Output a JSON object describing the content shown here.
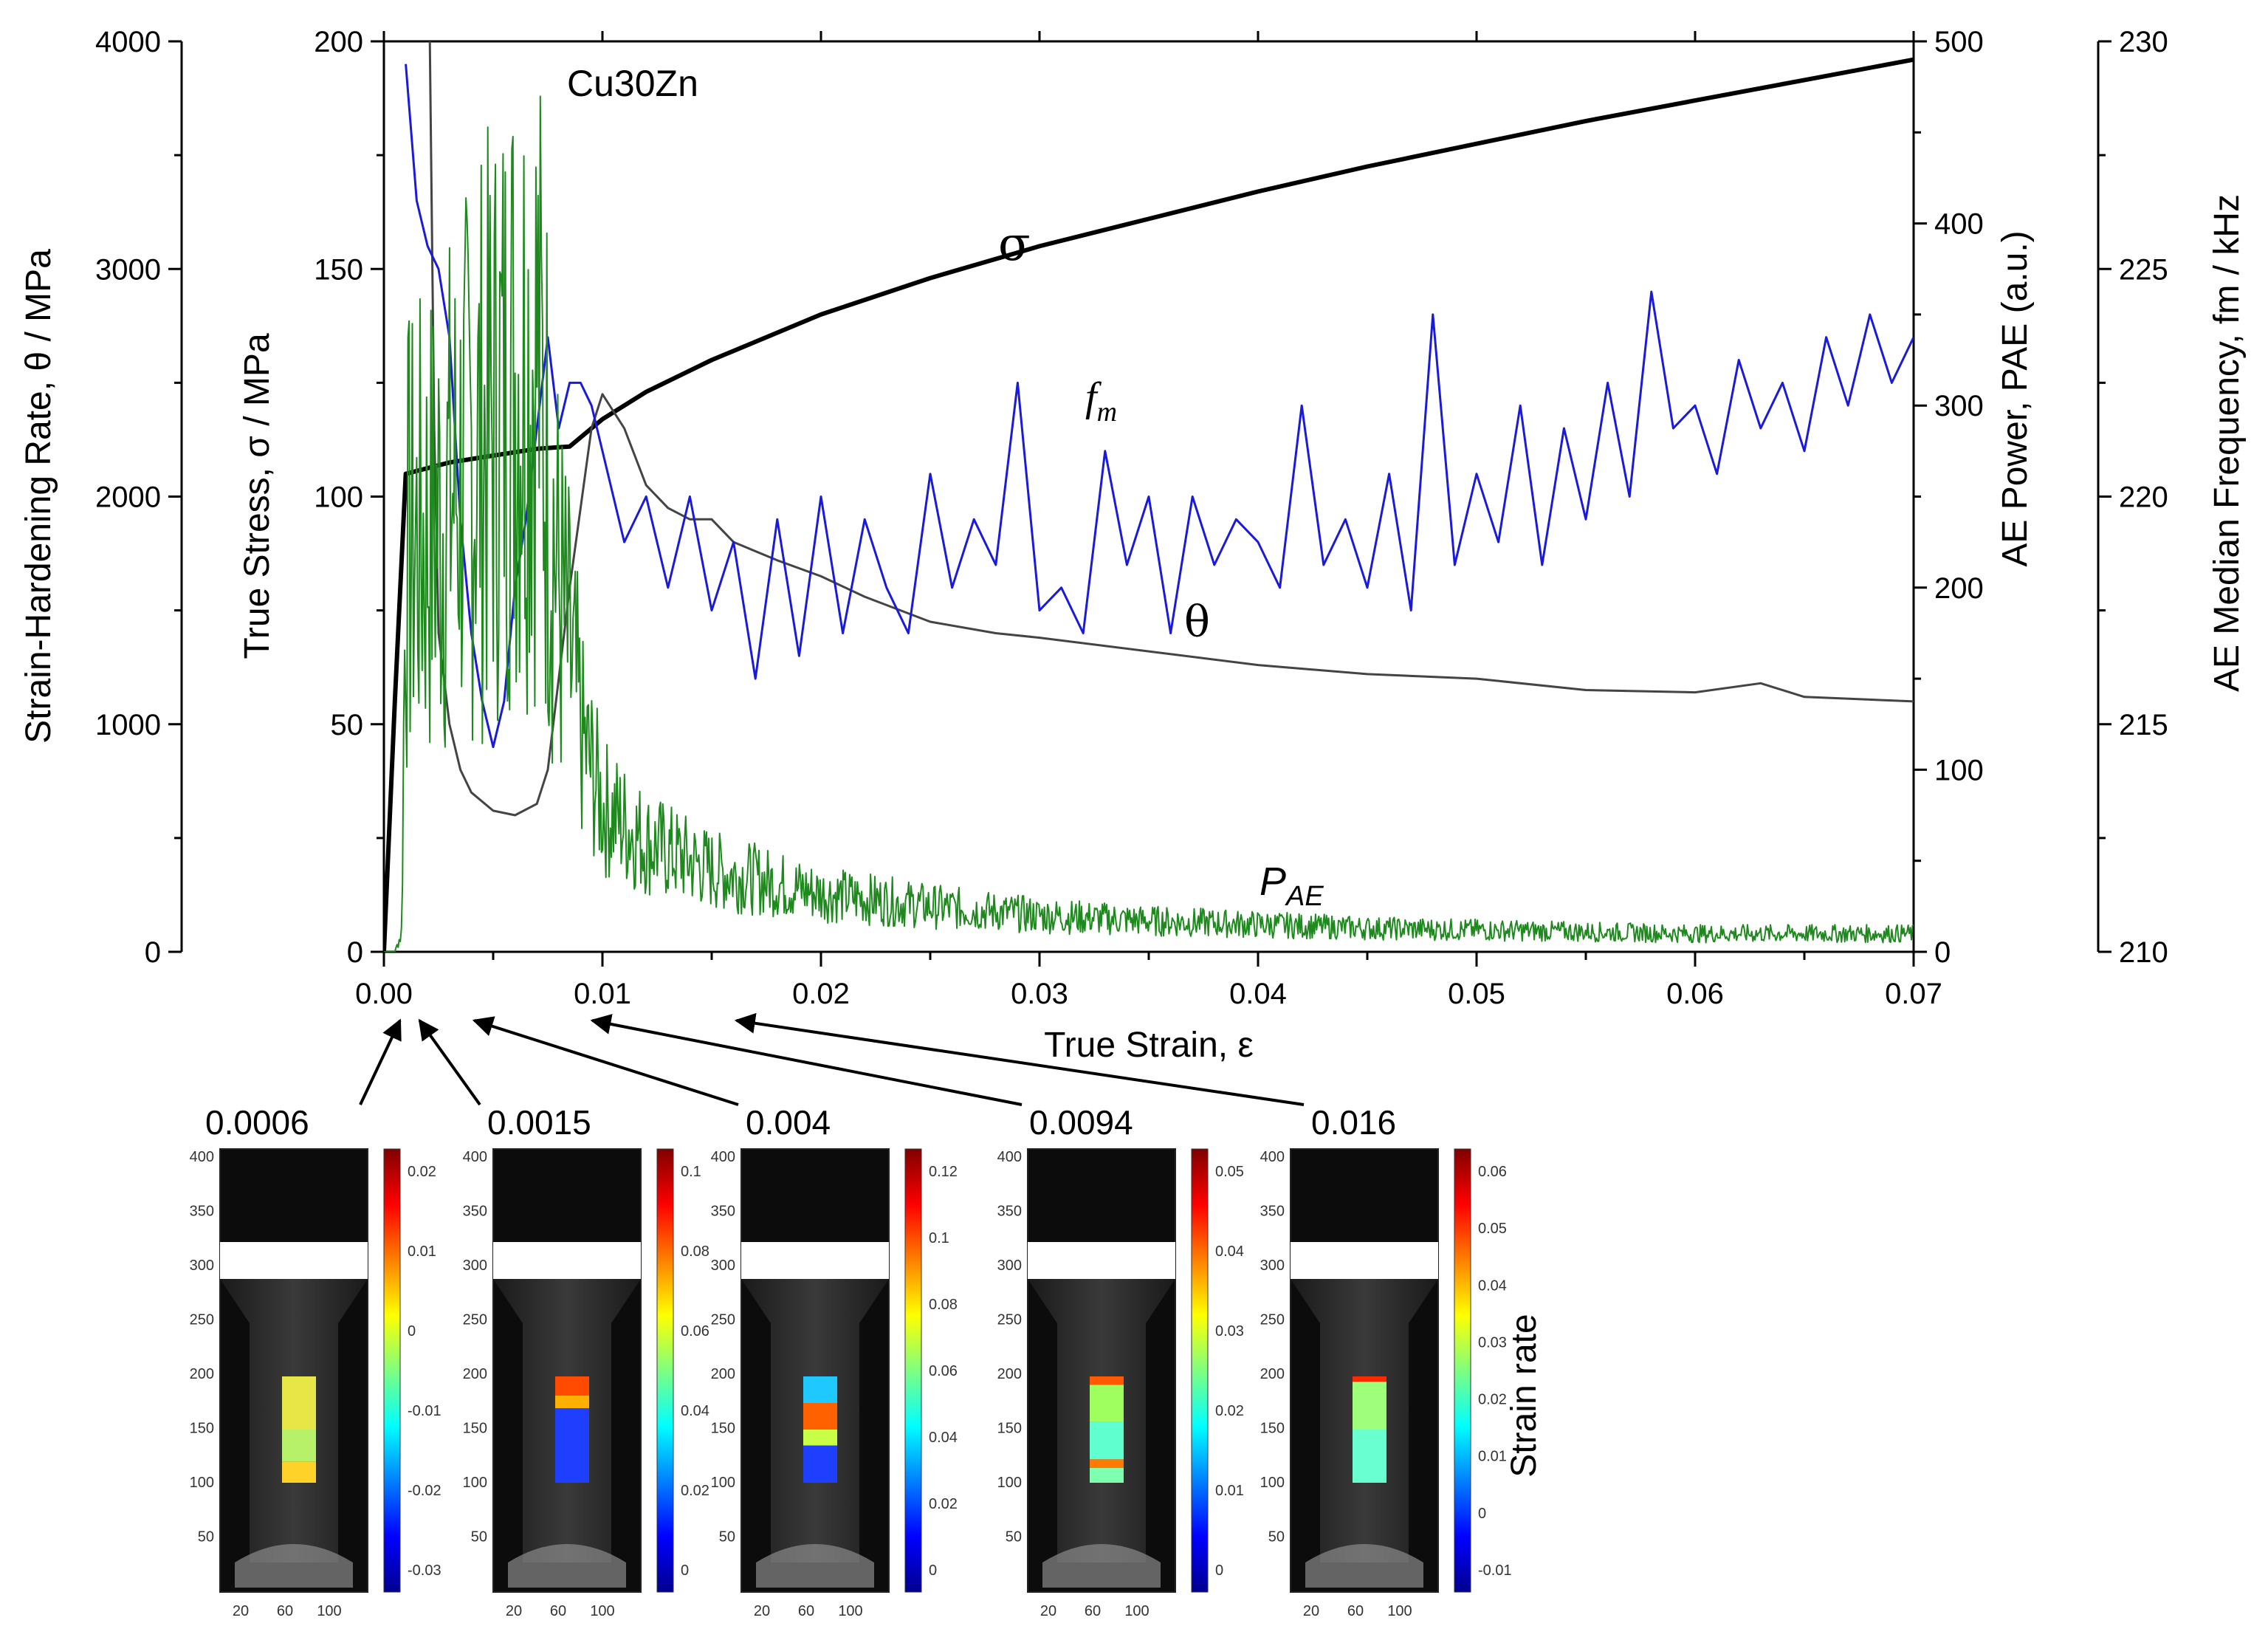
{
  "chart_data": {
    "type": "line",
    "material_label": "Cu30Zn",
    "x_axis": {
      "label": "True Strain, ε",
      "range": [
        0,
        0.07
      ],
      "ticks": [
        "0.00",
        "0.01",
        "0.02",
        "0.03",
        "0.04",
        "0.05",
        "0.06",
        "0.07"
      ]
    },
    "y_axes": {
      "hardening": {
        "label": "Strain-Hardening Rate, θ / MPa",
        "range": [
          0,
          4000
        ],
        "ticks": [
          "0",
          "1000",
          "2000",
          "3000",
          "4000"
        ]
      },
      "stress": {
        "label": "True Stress, σ / MPa",
        "range": [
          0,
          200
        ],
        "ticks": [
          "0",
          "50",
          "100",
          "150",
          "200"
        ]
      },
      "power": {
        "label": "AE Power, PAE (a.u.)",
        "range": [
          0,
          500
        ],
        "ticks": [
          "0",
          "100",
          "200",
          "300",
          "400",
          "500"
        ]
      },
      "frequency": {
        "label": "AE Median Frequency, fm / kHz",
        "range": [
          210,
          230
        ],
        "ticks": [
          "210",
          "215",
          "220",
          "225",
          "230"
        ]
      }
    },
    "series": [
      {
        "name": "σ",
        "axis": "stress",
        "color": "#000000",
        "x": [
          0,
          0.0005,
          0.001,
          0.003,
          0.005,
          0.007,
          0.0085,
          0.01,
          0.012,
          0.015,
          0.02,
          0.025,
          0.03,
          0.035,
          0.04,
          0.045,
          0.05,
          0.055,
          0.06,
          0.065,
          0.07
        ],
        "y": [
          0,
          55,
          105,
          107.5,
          109,
          110.5,
          111,
          117,
          123,
          130,
          140,
          148,
          155,
          161,
          167,
          172.5,
          177.5,
          182.5,
          187,
          191.5,
          196
        ]
      },
      {
        "name": "θ",
        "axis": "hardening",
        "color": "#444444",
        "x": [
          0.0021,
          0.0023,
          0.0025,
          0.003,
          0.0035,
          0.004,
          0.005,
          0.006,
          0.007,
          0.0075,
          0.0085,
          0.0095,
          0.01,
          0.011,
          0.012,
          0.013,
          0.014,
          0.015,
          0.016,
          0.018,
          0.02,
          0.022,
          0.025,
          0.028,
          0.03,
          0.035,
          0.04,
          0.045,
          0.05,
          0.055,
          0.06,
          0.063,
          0.065,
          0.07
        ],
        "y": [
          4000,
          2300,
          1400,
          1000,
          800,
          700,
          620,
          600,
          650,
          800,
          1600,
          2300,
          2450,
          2300,
          2050,
          1950,
          1900,
          1900,
          1800,
          1720,
          1650,
          1560,
          1450,
          1400,
          1380,
          1320,
          1260,
          1220,
          1200,
          1150,
          1140,
          1180,
          1120,
          1100
        ]
      },
      {
        "name": "fm",
        "axis": "frequency",
        "color": "#1a1adb",
        "x": [
          0.001,
          0.0015,
          0.002,
          0.0025,
          0.003,
          0.0035,
          0.004,
          0.0045,
          0.005,
          0.0055,
          0.006,
          0.0065,
          0.007,
          0.0075,
          0.008,
          0.0085,
          0.009,
          0.0095,
          0.01,
          0.011,
          0.012,
          0.013,
          0.014,
          0.015,
          0.016,
          0.017,
          0.018,
          0.019,
          0.02,
          0.021,
          0.022,
          0.023,
          0.024,
          0.025,
          0.026,
          0.027,
          0.028,
          0.029,
          0.03,
          0.031,
          0.032,
          0.033,
          0.034,
          0.035,
          0.036,
          0.037,
          0.038,
          0.039,
          0.04,
          0.041,
          0.042,
          0.043,
          0.044,
          0.045,
          0.046,
          0.047,
          0.048,
          0.049,
          0.05,
          0.051,
          0.052,
          0.053,
          0.054,
          0.055,
          0.056,
          0.057,
          0.058,
          0.059,
          0.06,
          0.061,
          0.062,
          0.063,
          0.064,
          0.065,
          0.066,
          0.067,
          0.068,
          0.069,
          0.07
        ],
        "y": [
          229.5,
          226.5,
          225.5,
          225,
          223.5,
          219.5,
          217,
          215.5,
          214.5,
          215.5,
          218,
          219.5,
          221.5,
          223.5,
          221.5,
          222.5,
          222.5,
          222,
          221,
          219,
          220,
          218,
          220,
          217.5,
          219,
          216,
          219.5,
          216.5,
          220,
          217,
          219.5,
          218,
          217,
          220.5,
          218,
          219.5,
          218.5,
          222.5,
          217.5,
          218,
          217,
          221,
          218.5,
          220,
          217,
          220,
          218.5,
          219.5,
          219,
          218,
          222,
          218.5,
          219.5,
          218,
          220.5,
          217.5,
          224,
          218.5,
          220.5,
          219,
          222,
          218.5,
          221.5,
          219.5,
          222.5,
          220,
          224.5,
          221.5,
          222,
          220.5,
          223,
          221.5,
          222.5,
          221,
          223.5,
          222,
          224,
          222.5,
          223.5
        ]
      },
      {
        "name": "PAE",
        "axis": "power",
        "color": "#1e8a1e",
        "x": [
          0,
          0.0005,
          0.0008,
          0.001,
          0.002,
          0.003,
          0.004,
          0.005,
          0.006,
          0.007,
          0.008,
          0.009,
          0.01,
          0.012,
          0.015,
          0.02,
          0.025,
          0.03,
          0.035,
          0.04,
          0.045,
          0.05,
          0.055,
          0.06,
          0.065,
          0.07
        ],
        "y": [
          0,
          0,
          10,
          220,
          230,
          250,
          270,
          290,
          320,
          330,
          200,
          120,
          80,
          60,
          45,
          32,
          25,
          20,
          17,
          15,
          13,
          12,
          11,
          10,
          10,
          10
        ]
      }
    ],
    "annotations": {
      "sigma": "σ",
      "fm_main": "f",
      "fm_sub": "m",
      "theta": "θ",
      "pae_main": "P",
      "pae_sub": "AE"
    },
    "dic_maps": [
      {
        "strain_label": "0.0006",
        "arrow_target_strain": 0.0006,
        "colorbar_ticks": [
          "0.02",
          "0.01",
          "0",
          "-0.01",
          "-0.02",
          "-0.03"
        ]
      },
      {
        "strain_label": "0.0015",
        "arrow_target_strain": 0.0015,
        "colorbar_ticks": [
          "0.1",
          "0.08",
          "0.06",
          "0.04",
          "0.02",
          "0"
        ]
      },
      {
        "strain_label": "0.004",
        "arrow_target_strain": 0.004,
        "colorbar_ticks": [
          "0.12",
          "0.1",
          "0.08",
          "0.06",
          "0.04",
          "0.02",
          "0"
        ]
      },
      {
        "strain_label": "0.0094",
        "arrow_target_strain": 0.0094,
        "colorbar_ticks": [
          "0.05",
          "0.04",
          "0.03",
          "0.02",
          "0.01",
          "0"
        ]
      },
      {
        "strain_label": "0.016",
        "arrow_target_strain": 0.016,
        "colorbar_ticks": [
          "0.06",
          "0.05",
          "0.04",
          "0.03",
          "0.02",
          "0.01",
          "0",
          "-0.01"
        ]
      }
    ],
    "dic_y_ticks": [
      "400",
      "350",
      "300",
      "250",
      "200",
      "150",
      "100",
      "50"
    ],
    "dic_x_ticks": [
      "20",
      "60",
      "100"
    ],
    "colorbar_label": "Strain rate"
  }
}
